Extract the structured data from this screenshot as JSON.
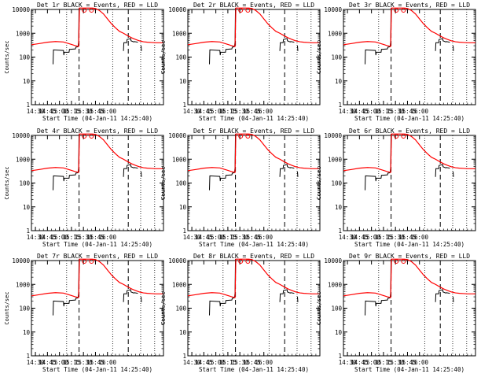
{
  "chart_data": {
    "type": "line",
    "y_scale": "log",
    "ylim": [
      1,
      10000
    ],
    "y_ticks": [
      1,
      10,
      100,
      1000,
      10000
    ],
    "y_tick_labels": [
      "1",
      "10",
      "100",
      "1000",
      "10000"
    ],
    "xlim": [
      "14:30",
      "16:00"
    ],
    "x_tick_labels": [
      "14:30",
      "14:45",
      "15:00",
      "15:15",
      "15:30",
      "15:45",
      "16:00"
    ],
    "xlabel": "Start Time (04-Jan-11 14:25:40)",
    "ylabel": "Counts/sec",
    "series_colors": {
      "events": "#000000",
      "lld": "#ff0000"
    },
    "dotted_lines_min": [
      44,
      101.5,
      136.5,
      154
    ],
    "dashed_lines_min": [
      59.5,
      121
    ],
    "grid": false,
    "panels": [
      {
        "title": "Det 1r BLACK = Events, RED = LLD"
      },
      {
        "title": "Det 2r BLACK = Events, RED = LLD"
      },
      {
        "title": "Det 3r BLACK = Events, RED = LLD"
      },
      {
        "title": "Det 4r BLACK = Events, RED = LLD"
      },
      {
        "title": "Det 5r BLACK = Events, RED = LLD"
      },
      {
        "title": "Det 6r BLACK = Events, RED = LLD"
      },
      {
        "title": "Det 7r BLACK = Events, RED = LLD"
      },
      {
        "title": "Det 8r BLACK = Events, RED = LLD"
      },
      {
        "title": "Det 9r BLACK = Events, RED = LLD"
      }
    ],
    "lld_series": {
      "name": "LLD",
      "x_min": [
        0,
        10,
        20,
        30,
        40,
        50,
        55,
        59,
        60,
        63,
        66,
        70,
        73,
        76,
        80,
        85,
        90,
        95,
        100,
        105,
        110,
        115,
        120,
        125,
        130,
        135,
        140,
        145,
        150,
        155,
        160,
        165
      ],
      "y": [
        330,
        370,
        420,
        450,
        430,
        340,
        300,
        280,
        12000,
        12000,
        12000,
        12000,
        12000,
        12000,
        11000,
        9000,
        6500,
        4000,
        2500,
        1700,
        1200,
        1000,
        800,
        650,
        550,
        480,
        440,
        420,
        410,
        400,
        400,
        400
      ]
    },
    "events_series": {
      "name": "Events",
      "segments": [
        {
          "x_min": [
            27,
            27.5,
            40,
            40.5,
            41,
            47,
            47.5,
            55,
            55.5,
            58,
            58.5,
            59,
            59.5
          ],
          "y": [
            50,
            200,
            190,
            120,
            160,
            160,
            210,
            220,
            260,
            270,
            310,
            450,
            12000
          ]
        },
        {
          "x_min": [
            115,
            115.5,
            119,
            119.5,
            124,
            124.5,
            128,
            128.5,
            133
          ],
          "y": [
            180,
            400,
            400,
            550,
            600,
            480,
            430,
            450,
            420
          ]
        },
        {
          "x_min": [
            137,
            137.5
          ],
          "y": [
            300,
            180
          ]
        }
      ]
    },
    "markers": [
      {
        "x_min": 66,
        "y": 12000
      },
      {
        "x_min": 75,
        "y": 11500
      }
    ]
  }
}
